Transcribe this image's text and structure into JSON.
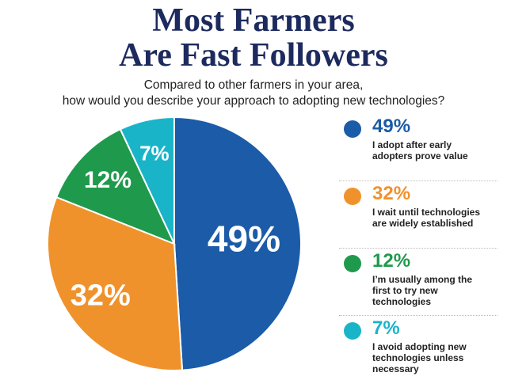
{
  "chart_data": {
    "type": "pie",
    "title": [
      "Most Farmers",
      "Are Fast Followers"
    ],
    "subtitle": [
      "Compared to other farmers in your area,",
      "how would you describe your approach to adopting new technologies?"
    ],
    "categories": [
      "I adopt after early adopters prove value",
      "I wait until technologies are widely established",
      "I’m usually among the first to try new technologies",
      "I avoid adopting new technologies unless necessary"
    ],
    "values": [
      49,
      32,
      12,
      7
    ],
    "value_labels": [
      "49%",
      "32%",
      "12%",
      "7%"
    ],
    "colors": [
      "#1b5ba7",
      "#f0922c",
      "#1f9a4c",
      "#1ab4c9"
    ]
  }
}
